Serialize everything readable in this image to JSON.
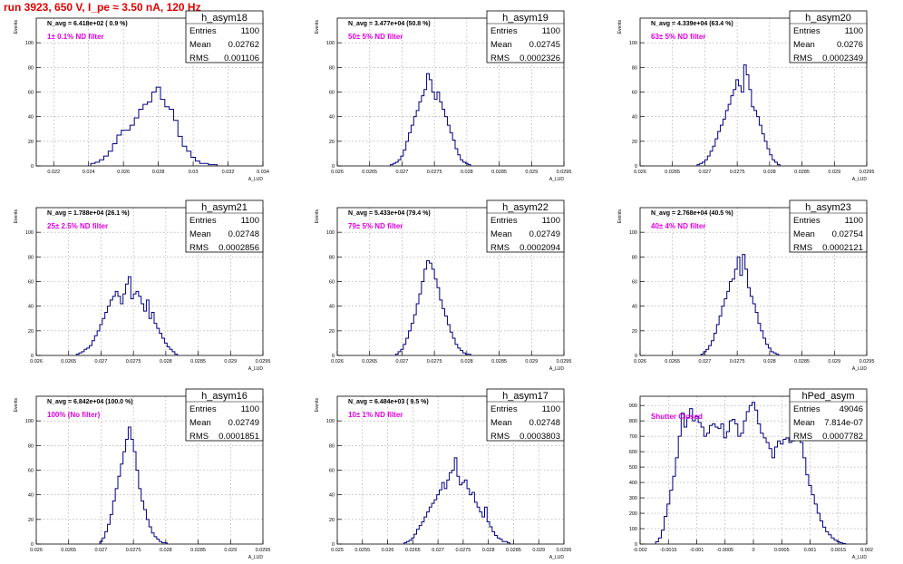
{
  "title": "run 3923,   650 V, I_pe ≈ 3.50 nA, 120 Hz",
  "colors": {
    "title": "#e00000",
    "histogram": "#000080",
    "annotation": "#e000e0",
    "grid": "#999999",
    "axis": "#000000"
  },
  "chart_data": [
    {
      "type": "bar",
      "name": "h_asym18",
      "stats": {
        "entries_label": "Entries",
        "entries": "1100",
        "mean_label": "Mean",
        "mean": "0.02762",
        "rms_label": "RMS",
        "rms": "0.001106"
      },
      "navg_text": "N_avg = 6.418e+02 ( 0.9 %)",
      "annotation": "1± 0.1% ND filter",
      "ylabel": "Events",
      "xlabel": "A_LUD",
      "xlim": [
        0.021,
        0.034
      ],
      "ylim": [
        0,
        120
      ],
      "xticks": [
        "0.022",
        "0.024",
        "0.026",
        "0.028",
        "0.03",
        "0.032",
        "0.034"
      ],
      "yticks": [
        "0",
        "20",
        "40",
        "60",
        "80",
        "100"
      ],
      "bin_width": 0.00025,
      "x": [
        0.02425,
        0.0245,
        0.02475,
        0.025,
        0.02525,
        0.0255,
        0.02575,
        0.026,
        0.02625,
        0.0265,
        0.02675,
        0.027,
        0.02725,
        0.0275,
        0.02775,
        0.028,
        0.02825,
        0.0285,
        0.02875,
        0.029,
        0.02925,
        0.0295,
        0.02975,
        0.03,
        0.03025,
        0.0305,
        0.03075,
        0.031,
        0.03125
      ],
      "values": [
        2,
        3,
        5,
        8,
        12,
        18,
        25,
        29,
        29,
        33,
        39,
        46,
        50,
        52,
        60,
        64,
        54,
        48,
        46,
        37,
        24,
        16,
        12,
        7,
        4,
        2,
        2,
        1,
        1
      ]
    },
    {
      "type": "bar",
      "name": "h_asym19",
      "stats": {
        "entries_label": "Entries",
        "entries": "1100",
        "mean_label": "Mean",
        "mean": "0.02745",
        "rms_label": "RMS",
        "rms": "0.0002326"
      },
      "navg_text": "N_avg = 3.477e+04 (50.8 %)",
      "annotation": "50± 5% ND filter",
      "ylabel": "Events",
      "xlabel": "A_LUD",
      "xlim": [
        0.026,
        0.0295
      ],
      "ylim": [
        0,
        120
      ],
      "xticks": [
        "0.026",
        "0.0265",
        "0.027",
        "0.0275",
        "0.028",
        "0.0285",
        "0.029",
        "0.0295"
      ],
      "yticks": [
        "0",
        "20",
        "40",
        "60",
        "80",
        "100"
      ],
      "bin_width": 4e-05,
      "x": [
        0.02684,
        0.02688,
        0.02692,
        0.02696,
        0.027,
        0.02704,
        0.02708,
        0.02712,
        0.02716,
        0.0272,
        0.02724,
        0.02728,
        0.02732,
        0.02736,
        0.0274,
        0.02744,
        0.02748,
        0.02752,
        0.02756,
        0.0276,
        0.02764,
        0.02768,
        0.02772,
        0.02776,
        0.0278,
        0.02784,
        0.02788,
        0.02792,
        0.02796,
        0.028,
        0.02804
      ],
      "values": [
        1,
        2,
        3,
        5,
        8,
        13,
        20,
        27,
        33,
        40,
        45,
        52,
        57,
        62,
        75,
        70,
        60,
        54,
        60,
        52,
        46,
        40,
        33,
        27,
        21,
        14,
        9,
        5,
        3,
        2,
        1
      ]
    },
    {
      "type": "bar",
      "name": "h_asym20",
      "stats": {
        "entries_label": "Entries",
        "entries": "1100",
        "mean_label": "Mean",
        "mean": "0.0276",
        "rms_label": "RMS",
        "rms": "0.0002349"
      },
      "navg_text": "N_avg = 4.339e+04 (63.4 %)",
      "annotation": "63± 5% ND filter",
      "ylabel": "Events",
      "xlabel": "A_LUD",
      "xlim": [
        0.026,
        0.0295
      ],
      "ylim": [
        0,
        120
      ],
      "xticks": [
        "0.026",
        "0.0265",
        "0.027",
        "0.0275",
        "0.028",
        "0.0285",
        "0.029",
        "0.0295"
      ],
      "yticks": [
        "0",
        "20",
        "40",
        "60",
        "80",
        "100"
      ],
      "bin_width": 4e-05,
      "x": [
        0.0269,
        0.02694,
        0.02698,
        0.02702,
        0.02706,
        0.0271,
        0.02714,
        0.02718,
        0.02722,
        0.02726,
        0.0273,
        0.02734,
        0.02738,
        0.02742,
        0.02746,
        0.0275,
        0.02754,
        0.02758,
        0.02762,
        0.02766,
        0.0277,
        0.02774,
        0.02778,
        0.02782,
        0.02786,
        0.0279,
        0.02794,
        0.02798,
        0.02802,
        0.02806,
        0.0281,
        0.02814
      ],
      "values": [
        1,
        2,
        3,
        5,
        8,
        12,
        16,
        22,
        28,
        33,
        38,
        45,
        50,
        57,
        62,
        70,
        65,
        60,
        82,
        74,
        62,
        48,
        45,
        40,
        33,
        26,
        20,
        14,
        9,
        5,
        3,
        1
      ]
    },
    {
      "type": "bar",
      "name": "h_asym21",
      "stats": {
        "entries_label": "Entries",
        "entries": "1100",
        "mean_label": "Mean",
        "mean": "0.02748",
        "rms_label": "RMS",
        "rms": "0.0002856"
      },
      "navg_text": "N_avg = 1.788e+04 (26.1 %)",
      "annotation": "25± 2.5% ND filter",
      "ylabel": "Events",
      "xlabel": "A_LUD",
      "xlim": [
        0.026,
        0.0295
      ],
      "ylim": [
        0,
        120
      ],
      "xticks": [
        "0.026",
        "0.0265",
        "0.027",
        "0.0275",
        "0.028",
        "0.0285",
        "0.029",
        "0.0295"
      ],
      "yticks": [
        "0",
        "20",
        "40",
        "60",
        "80",
        "100"
      ],
      "bin_width": 4e-05,
      "x": [
        0.02664,
        0.02668,
        0.02672,
        0.02676,
        0.0268,
        0.02684,
        0.02688,
        0.02692,
        0.02696,
        0.027,
        0.02704,
        0.02708,
        0.02712,
        0.02716,
        0.0272,
        0.02724,
        0.02728,
        0.02732,
        0.02736,
        0.0274,
        0.02744,
        0.02748,
        0.02752,
        0.02756,
        0.0276,
        0.02764,
        0.02768,
        0.02772,
        0.02776,
        0.0278,
        0.02784,
        0.02788,
        0.02792,
        0.02796,
        0.028,
        0.02804,
        0.02808,
        0.02812,
        0.02816
      ],
      "values": [
        1,
        2,
        3,
        5,
        6,
        8,
        12,
        16,
        20,
        25,
        30,
        35,
        40,
        45,
        48,
        52,
        48,
        42,
        50,
        58,
        64,
        46,
        50,
        52,
        48,
        42,
        36,
        45,
        30,
        35,
        26,
        22,
        18,
        14,
        10,
        7,
        5,
        3,
        1
      ]
    },
    {
      "type": "bar",
      "name": "h_asym22",
      "stats": {
        "entries_label": "Entries",
        "entries": "1100",
        "mean_label": "Mean",
        "mean": "0.02749",
        "rms_label": "RMS",
        "rms": "0.0002094"
      },
      "navg_text": "N_avg = 5.433e+04 (79.4 %)",
      "annotation": "79± 5% ND filter",
      "ylabel": "Events",
      "xlabel": "A_LUD",
      "xlim": [
        0.026,
        0.0295
      ],
      "ylim": [
        0,
        120
      ],
      "xticks": [
        "0.026",
        "0.0265",
        "0.027",
        "0.0275",
        "0.028",
        "0.0285",
        "0.029",
        "0.0295"
      ],
      "yticks": [
        "0",
        "20",
        "40",
        "60",
        "80",
        "100"
      ],
      "bin_width": 4e-05,
      "x": [
        0.02692,
        0.02696,
        0.027,
        0.02704,
        0.02708,
        0.02712,
        0.02716,
        0.0272,
        0.02724,
        0.02728,
        0.02732,
        0.02736,
        0.0274,
        0.02744,
        0.02748,
        0.02752,
        0.02756,
        0.0276,
        0.02764,
        0.02768,
        0.02772,
        0.02776,
        0.0278,
        0.02784,
        0.02788,
        0.02792,
        0.02796,
        0.028,
        0.02804
      ],
      "values": [
        1,
        3,
        5,
        9,
        14,
        20,
        26,
        33,
        42,
        50,
        60,
        70,
        77,
        75,
        70,
        62,
        55,
        45,
        38,
        32,
        25,
        19,
        14,
        9,
        6,
        4,
        2,
        1,
        1
      ]
    },
    {
      "type": "bar",
      "name": "h_asym23",
      "stats": {
        "entries_label": "Entries",
        "entries": "1100",
        "mean_label": "Mean",
        "mean": "0.02754",
        "rms_label": "RMS",
        "rms": "0.0002121"
      },
      "navg_text": "N_avg = 2.768e+04 (40.5 %)",
      "annotation": "40± 4% ND filter",
      "ylabel": "Events",
      "xlabel": "A_LUD",
      "xlim": [
        0.026,
        0.0295
      ],
      "ylim": [
        0,
        120
      ],
      "xticks": [
        "0.026",
        "0.0265",
        "0.027",
        "0.0275",
        "0.028",
        "0.0285",
        "0.029",
        "0.0295"
      ],
      "yticks": [
        "0",
        "20",
        "40",
        "60",
        "80",
        "100"
      ],
      "bin_width": 4e-05,
      "x": [
        0.02696,
        0.027,
        0.02704,
        0.02708,
        0.02712,
        0.02716,
        0.0272,
        0.02724,
        0.02728,
        0.02732,
        0.02736,
        0.0274,
        0.02744,
        0.02748,
        0.02752,
        0.02756,
        0.0276,
        0.02764,
        0.02768,
        0.02772,
        0.02776,
        0.0278,
        0.02784,
        0.02788,
        0.02792,
        0.02796,
        0.028,
        0.02804,
        0.02808,
        0.02812
      ],
      "values": [
        1,
        3,
        5,
        8,
        12,
        18,
        25,
        32,
        40,
        46,
        52,
        60,
        62,
        70,
        80,
        65,
        82,
        70,
        55,
        48,
        42,
        35,
        26,
        20,
        14,
        9,
        6,
        3,
        2,
        1
      ]
    },
    {
      "type": "bar",
      "name": "h_asym16",
      "stats": {
        "entries_label": "Entries",
        "entries": "1100",
        "mean_label": "Mean",
        "mean": "0.02749",
        "rms_label": "RMS",
        "rms": "0.0001851"
      },
      "navg_text": "N_avg = 6.842e+04 (100.0 %)",
      "annotation": "100% (No filter)",
      "ylabel": "Events",
      "xlabel": "A_LUD",
      "xlim": [
        0.026,
        0.0295
      ],
      "ylim": [
        0,
        120
      ],
      "xticks": [
        "0.026",
        "0.0265",
        "0.027",
        "0.0275",
        "0.028",
        "0.0285",
        "0.029",
        "0.0295"
      ],
      "yticks": [
        "0",
        "20",
        "40",
        "60",
        "80",
        "100"
      ],
      "bin_width": 4e-05,
      "x": [
        0.027,
        0.02704,
        0.02708,
        0.02712,
        0.02716,
        0.0272,
        0.02724,
        0.02728,
        0.02732,
        0.02736,
        0.0274,
        0.02744,
        0.02748,
        0.02752,
        0.02756,
        0.0276,
        0.02764,
        0.02768,
        0.02772,
        0.02776,
        0.0278,
        0.02784,
        0.02788,
        0.02792,
        0.02796,
        0.028
      ],
      "values": [
        2,
        5,
        10,
        16,
        24,
        35,
        45,
        55,
        65,
        75,
        85,
        95,
        85,
        75,
        60,
        45,
        35,
        28,
        20,
        14,
        9,
        6,
        4,
        2,
        1,
        1
      ]
    },
    {
      "type": "bar",
      "name": "h_asym17",
      "stats": {
        "entries_label": "Entries",
        "entries": "1100",
        "mean_label": "Mean",
        "mean": "0.02748",
        "rms_label": "RMS",
        "rms": "0.0003803"
      },
      "navg_text": "N_avg = 6.484e+03 ( 9.5 %)",
      "annotation": "10± 1% ND filter",
      "ylabel": "Events",
      "xlabel": "A_LUD",
      "xlim": [
        0.025,
        0.0295
      ],
      "ylim": [
        0,
        120
      ],
      "xticks": [
        "0.025",
        "0.0255",
        "0.026",
        "0.0265",
        "0.027",
        "0.0275",
        "0.028",
        "0.0285",
        "0.029",
        "0.0295"
      ],
      "yticks": [
        "0",
        "20",
        "40",
        "60",
        "80",
        "100"
      ],
      "bin_width": 5e-05,
      "x": [
        0.02635,
        0.0264,
        0.02645,
        0.0265,
        0.02655,
        0.0266,
        0.02665,
        0.0267,
        0.02675,
        0.0268,
        0.02685,
        0.0269,
        0.02695,
        0.027,
        0.02705,
        0.0271,
        0.02715,
        0.0272,
        0.02725,
        0.0273,
        0.02735,
        0.0274,
        0.02745,
        0.0275,
        0.02755,
        0.0276,
        0.02765,
        0.0277,
        0.02775,
        0.0278,
        0.02785,
        0.0279,
        0.02795,
        0.028,
        0.02805,
        0.0281,
        0.02815,
        0.0282,
        0.02825,
        0.0283,
        0.02835,
        0.0284
      ],
      "values": [
        1,
        2,
        3,
        5,
        8,
        12,
        15,
        18,
        22,
        26,
        30,
        33,
        36,
        40,
        44,
        50,
        45,
        52,
        58,
        60,
        70,
        55,
        48,
        50,
        52,
        45,
        40,
        42,
        34,
        30,
        26,
        22,
        30,
        18,
        14,
        10,
        7,
        5,
        4,
        2,
        2,
        1
      ]
    },
    {
      "type": "bar",
      "name": "hPed_asym",
      "stats": {
        "entries_label": "Entries",
        "entries": "49046",
        "mean_label": "Mean",
        "mean": "7.814e-07",
        "rms_label": "RMS",
        "rms": "0.0007782"
      },
      "navg_text": "",
      "annotation": "Shutter Closed",
      "ylabel": "",
      "xlabel": "A_LUD",
      "xlim": [
        -0.002,
        0.002
      ],
      "ylim": [
        0,
        960
      ],
      "xticks": [
        "-0.002",
        "-0.0015",
        "-0.001",
        "-0.0005",
        "0",
        "0.0005",
        "0.001",
        "0.0015",
        "0.002"
      ],
      "yticks": [
        "0",
        "100",
        "200",
        "300",
        "400",
        "500",
        "600",
        "700",
        "800",
        "900"
      ],
      "bin_width": 5e-05,
      "x": [
        -0.0017,
        -0.00165,
        -0.0016,
        -0.00155,
        -0.0015,
        -0.00145,
        -0.0014,
        -0.00135,
        -0.0013,
        -0.00125,
        -0.0012,
        -0.00115,
        -0.0011,
        -0.00105,
        -0.001,
        -0.00095,
        -0.0009,
        -0.00085,
        -0.0008,
        -0.00075,
        -0.0007,
        -0.00065,
        -0.0006,
        -0.00055,
        -0.0005,
        -0.00045,
        -0.0004,
        -0.00035,
        -0.0003,
        -0.00025,
        -0.0002,
        -0.00015,
        -0.0001,
        -5e-05,
        0,
        5e-05,
        0.0001,
        0.00015,
        0.0002,
        0.00025,
        0.0003,
        0.00035,
        0.0004,
        0.00045,
        0.0005,
        0.00055,
        0.0006,
        0.00065,
        0.0007,
        0.00075,
        0.0008,
        0.00085,
        0.0009,
        0.00095,
        0.001,
        0.00105,
        0.0011,
        0.00115,
        0.0012,
        0.00125,
        0.0013,
        0.00135,
        0.0014,
        0.00145,
        0.0015,
        0.00155,
        0.0016
      ],
      "values": [
        15,
        40,
        90,
        180,
        260,
        350,
        440,
        560,
        700,
        850,
        760,
        820,
        880,
        800,
        830,
        790,
        760,
        700,
        720,
        770,
        780,
        760,
        750,
        780,
        690,
        730,
        800,
        810,
        780,
        700,
        720,
        800,
        860,
        900,
        920,
        870,
        780,
        720,
        690,
        660,
        620,
        560,
        630,
        670,
        650,
        680,
        690,
        660,
        670,
        680,
        700,
        660,
        560,
        450,
        380,
        320,
        260,
        200,
        150,
        110,
        80,
        60,
        40,
        25,
        15,
        8,
        4
      ]
    }
  ]
}
